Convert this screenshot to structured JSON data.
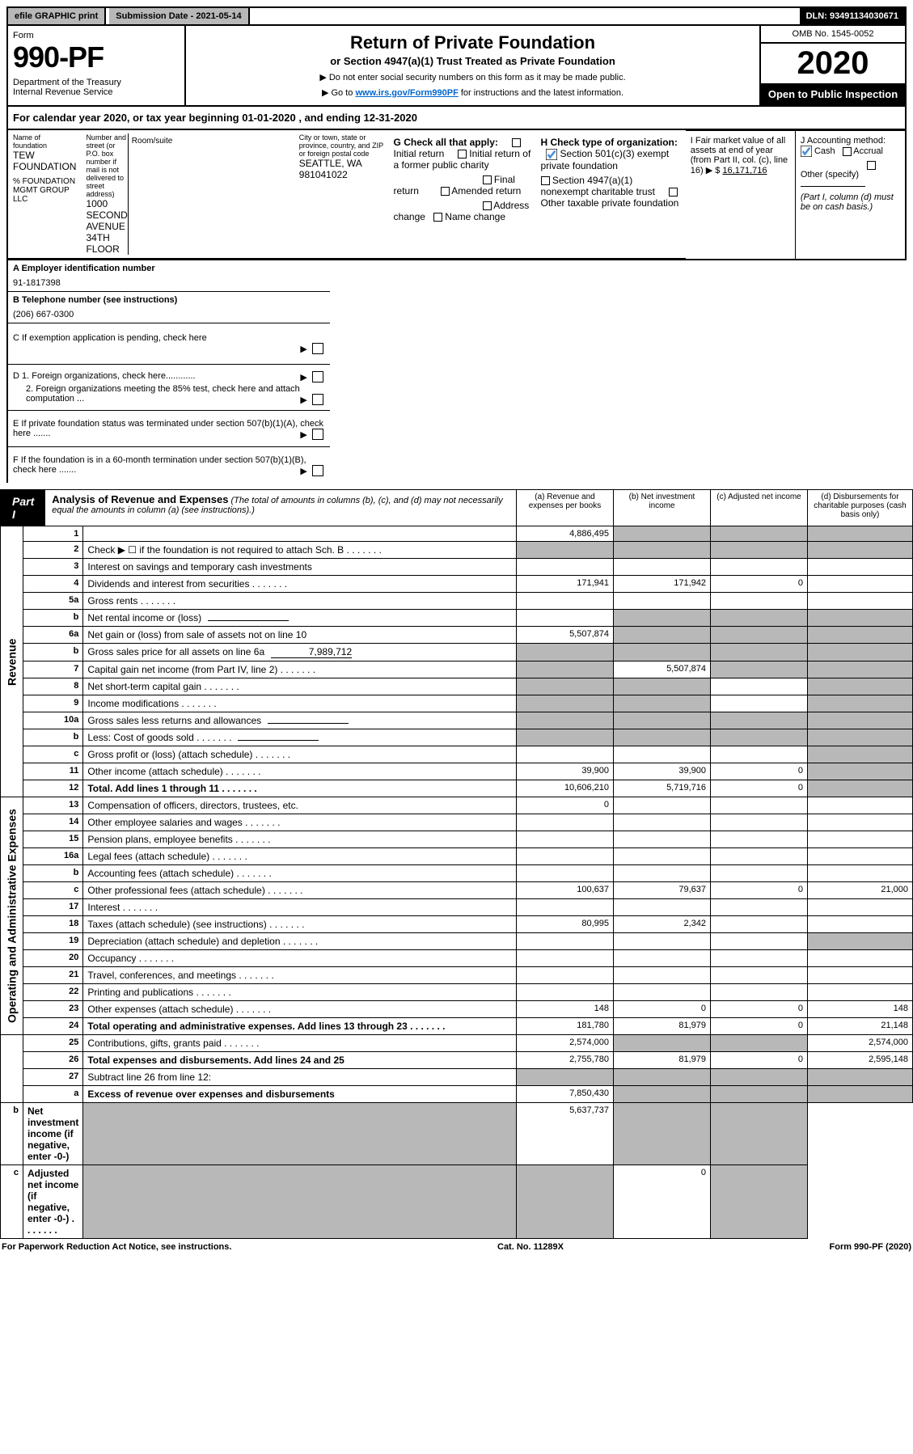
{
  "topbar": {
    "efile": "efile GRAPHIC print",
    "submission": "Submission Date - 2021-05-14",
    "dln": "DLN: 93491134030671"
  },
  "header": {
    "form_label": "Form",
    "form_no": "990-PF",
    "dept": "Department of the Treasury\nInternal Revenue Service",
    "title": "Return of Private Foundation",
    "subtitle": "or Section 4947(a)(1) Trust Treated as Private Foundation",
    "instr1": "▶ Do not enter social security numbers on this form as it may be made public.",
    "instr2_pre": "▶ Go to ",
    "instr2_link": "www.irs.gov/Form990PF",
    "instr2_post": " for instructions and the latest information.",
    "omb": "OMB No. 1545-0052",
    "year": "2020",
    "open": "Open to Public Inspection"
  },
  "calyear": "For calendar year 2020, or tax year beginning 01-01-2020             , and ending 12-31-2020",
  "info": {
    "name_label": "Name of foundation",
    "name": "TEW FOUNDATION",
    "care_of": "% FOUNDATION MGMT GROUP LLC",
    "addr_label": "Number and street (or P.O. box number if mail is not delivered to street address)",
    "addr": "1000 SECOND AVENUE 34TH FLOOR",
    "room_label": "Room/suite",
    "city_label": "City or town, state or province, country, and ZIP or foreign postal code",
    "city": "SEATTLE, WA  981041022",
    "A_label": "A Employer identification number",
    "A": "91-1817398",
    "B_label": "B Telephone number (see instructions)",
    "B": "(206) 667-0300",
    "C": "C If exemption application is pending, check here",
    "D1": "D 1. Foreign organizations, check here............",
    "D2": "2. Foreign organizations meeting the 85% test, check here and attach computation ...",
    "E": "E  If private foundation status was terminated under section 507(b)(1)(A), check here .......",
    "F": "F  If the foundation is in a 60-month termination under section 507(b)(1)(B), check here .......",
    "G": "G Check all that apply:",
    "G_opts": [
      "Initial return",
      "Initial return of a former public charity",
      "Final return",
      "Amended return",
      "Address change",
      "Name change"
    ],
    "H": "H Check type of organization:",
    "H1": "Section 501(c)(3) exempt private foundation",
    "H2": "Section 4947(a)(1) nonexempt charitable trust",
    "H3": "Other taxable private foundation",
    "I_label": "I Fair market value of all assets at end of year (from Part II, col. (c), line 16) ▶ $",
    "I": "16,171,716",
    "J_label": "J Accounting method:",
    "J_cash": "Cash",
    "J_accrual": "Accrual",
    "J_other": "Other (specify)",
    "J_note": "(Part I, column (d) must be on cash basis.)"
  },
  "part1": {
    "label": "Part I",
    "title": "Analysis of Revenue and Expenses",
    "note": "(The total of amounts in columns (b), (c), and (d) may not necessarily equal the amounts in column (a) (see instructions).)",
    "cols": [
      "(a)   Revenue and expenses per books",
      "(b)   Net investment income",
      "(c)   Adjusted net income",
      "(d)   Disbursements for charitable purposes (cash basis only)"
    ]
  },
  "vlabels": {
    "revenue": "Revenue",
    "expenses": "Operating and Administrative Expenses"
  },
  "rows": [
    {
      "n": "1",
      "d": "",
      "a": "4,886,495",
      "b": "",
      "c": "",
      "bg": false,
      "cg": false,
      "dg": false,
      "greyBCD": true
    },
    {
      "n": "2",
      "d": "Check ▶ ☐ if the foundation is not required to attach Sch. B",
      "dots": true,
      "allgrey": true
    },
    {
      "n": "3",
      "d": "Interest on savings and temporary cash investments"
    },
    {
      "n": "4",
      "d": "Dividends and interest from securities",
      "dots": true,
      "a": "171,941",
      "b": "171,942",
      "c": "0"
    },
    {
      "n": "5a",
      "d": "Gross rents",
      "dots": true
    },
    {
      "n": "b",
      "d": "Net rental income or (loss)",
      "inline": true,
      "greyBCD": true
    },
    {
      "n": "6a",
      "d": "Net gain or (loss) from sale of assets not on line 10",
      "a": "5,507,874",
      "greyBCD": true
    },
    {
      "n": "b",
      "d": "Gross sales price for all assets on line 6a",
      "inline": true,
      "ival": "7,989,712",
      "greyBCD": true,
      "ag": true
    },
    {
      "n": "7",
      "d": "Capital gain net income (from Part IV, line 2)",
      "dots": true,
      "b": "5,507,874",
      "ag": true,
      "cg": true,
      "dg": true,
      "greyACD": true
    },
    {
      "n": "8",
      "d": "Net short-term capital gain",
      "dots": true,
      "ag": true,
      "bg": true,
      "dg": true,
      "greyABD": true
    },
    {
      "n": "9",
      "d": "Income modifications",
      "dots": true,
      "ag": true,
      "bg": true,
      "dg": true,
      "greyABD": true
    },
    {
      "n": "10a",
      "d": "Gross sales less returns and allowances",
      "inline": true,
      "greyBCD": true,
      "ag": true
    },
    {
      "n": "b",
      "d": "Less: Cost of goods sold",
      "dots": true,
      "inline": true,
      "greyBCD": true,
      "ag": true
    },
    {
      "n": "c",
      "d": "Gross profit or (loss) (attach schedule)",
      "dots": true,
      "dg": true
    },
    {
      "n": "11",
      "d": "Other income (attach schedule)",
      "dots": true,
      "a": "39,900",
      "b": "39,900",
      "c": "0",
      "dg": true
    },
    {
      "n": "12",
      "d": "Total. Add lines 1 through 11",
      "dots": true,
      "bold": true,
      "a": "10,606,210",
      "b": "5,719,716",
      "c": "0",
      "dg": true
    },
    {
      "n": "13",
      "d": "Compensation of officers, directors, trustees, etc.",
      "a": "0"
    },
    {
      "n": "14",
      "d": "Other employee salaries and wages",
      "dots": true
    },
    {
      "n": "15",
      "d": "Pension plans, employee benefits",
      "dots": true
    },
    {
      "n": "16a",
      "d": "Legal fees (attach schedule)",
      "dots": true
    },
    {
      "n": "b",
      "d": "Accounting fees (attach schedule)",
      "dots": true
    },
    {
      "n": "c",
      "d": "Other professional fees (attach schedule)",
      "dots": true,
      "a": "100,637",
      "b": "79,637",
      "c": "0",
      "dv": "21,000"
    },
    {
      "n": "17",
      "d": "Interest",
      "dots": true
    },
    {
      "n": "18",
      "d": "Taxes (attach schedule) (see instructions)",
      "dots": true,
      "a": "80,995",
      "b": "2,342"
    },
    {
      "n": "19",
      "d": "Depreciation (attach schedule) and depletion",
      "dots": true,
      "dg": true
    },
    {
      "n": "20",
      "d": "Occupancy",
      "dots": true
    },
    {
      "n": "21",
      "d": "Travel, conferences, and meetings",
      "dots": true
    },
    {
      "n": "22",
      "d": "Printing and publications",
      "dots": true
    },
    {
      "n": "23",
      "d": "Other expenses (attach schedule)",
      "dots": true,
      "a": "148",
      "b": "0",
      "c": "0",
      "dv": "148"
    },
    {
      "n": "24",
      "d": "Total operating and administrative expenses. Add lines 13 through 23",
      "dots": true,
      "bold": true,
      "a": "181,780",
      "b": "81,979",
      "c": "0",
      "dv": "21,148"
    },
    {
      "n": "25",
      "d": "Contributions, gifts, grants paid",
      "dots": true,
      "a": "2,574,000",
      "bg": true,
      "cg": true,
      "dv": "2,574,000",
      "greyBC": true
    },
    {
      "n": "26",
      "d": "Total expenses and disbursements. Add lines 24 and 25",
      "bold": true,
      "a": "2,755,780",
      "b": "81,979",
      "c": "0",
      "dv": "2,595,148"
    },
    {
      "n": "27",
      "d": "Subtract line 26 from line 12:",
      "allgrey": true
    },
    {
      "n": "a",
      "d": "Excess of revenue over expenses and disbursements",
      "bold": true,
      "a": "7,850,430",
      "greyBCD": true
    },
    {
      "n": "b",
      "d": "Net investment income (if negative, enter -0-)",
      "bold": true,
      "b": "5,637,737",
      "ag": true,
      "cg": true,
      "dg": true,
      "greyACD": true
    },
    {
      "n": "c",
      "d": "Adjusted net income (if negative, enter -0-)",
      "bold": true,
      "dots": true,
      "c": "0",
      "ag": true,
      "bg": true,
      "dg": true,
      "greyABD": true
    }
  ],
  "footer": {
    "left": "For Paperwork Reduction Act Notice, see instructions.",
    "mid": "Cat. No. 11289X",
    "right": "Form 990-PF (2020)"
  },
  "colors": {
    "grey": "#b8b8b8",
    "link": "#0066cc",
    "check": "#4a90d9"
  }
}
